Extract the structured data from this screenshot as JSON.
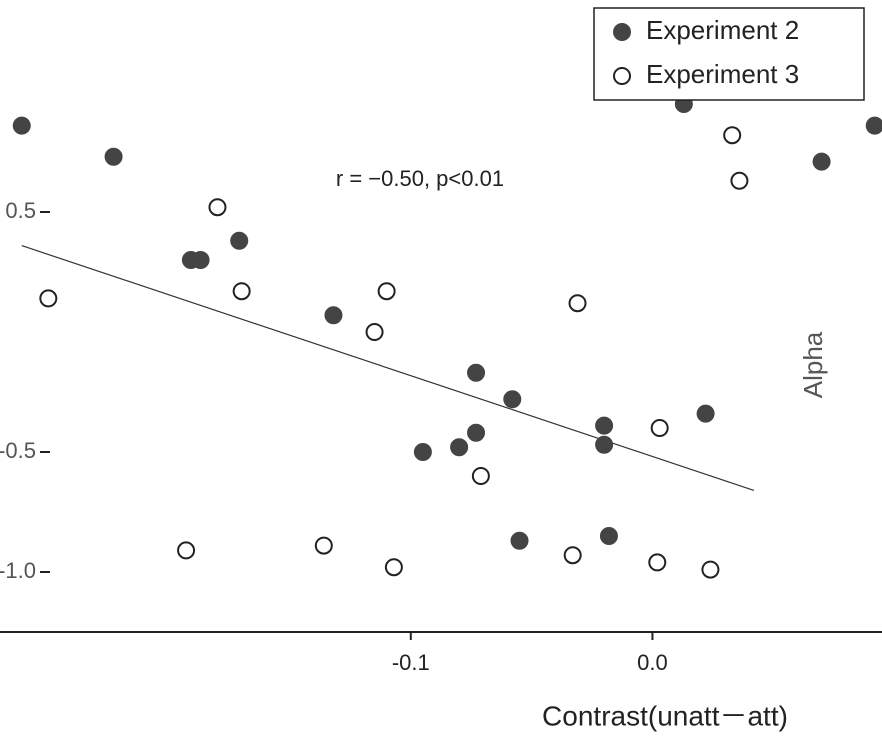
{
  "chart_data": {
    "type": "scatter",
    "annotation": "r = −0.50, p<0.01",
    "xlabel": "Contrast(unatt－att)",
    "ylabel": "Alpha",
    "xlim": [
      -0.27,
      0.095
    ],
    "ylim": [
      -1.25,
      1.3
    ],
    "xticks": [
      -0.1,
      {
        "value": 0,
        "label": "0.0"
      }
    ],
    "yticks": [
      {
        "value": -1,
        "label": "-1.0"
      },
      -0.5,
      0.5
    ],
    "legend": "top-right",
    "series": [
      {
        "name": "Experiment 2",
        "color": "#444444",
        "filled": true,
        "x": [
          -0.261,
          -0.223,
          -0.171,
          -0.191,
          -0.187,
          -0.132,
          -0.073,
          -0.058,
          -0.095,
          -0.08,
          -0.073,
          -0.02,
          -0.02,
          0.022,
          -0.055,
          -0.018,
          0.013,
          0.07,
          0.092
        ],
        "values": [
          0.86,
          0.73,
          0.38,
          0.3,
          0.3,
          0.07,
          -0.17,
          -0.28,
          -0.5,
          -0.48,
          -0.42,
          -0.39,
          -0.47,
          -0.34,
          -0.87,
          -0.85,
          0.95,
          0.71,
          0.86
        ]
      },
      {
        "name": "Experiment 3",
        "color": "#222222",
        "filled": false,
        "x": [
          -0.18,
          -0.25,
          -0.115,
          -0.031,
          0.003,
          -0.071,
          -0.193,
          -0.136,
          -0.107,
          -0.033,
          0.002,
          0.024,
          0.033,
          0.036,
          -0.17,
          -0.11
        ],
        "values": [
          0.52,
          0.14,
          0,
          0.12,
          -0.4,
          -0.6,
          -0.91,
          -0.89,
          -0.98,
          -0.93,
          -0.96,
          -0.99,
          0.82,
          0.63,
          0.17,
          0.17
        ]
      }
    ],
    "trend_line": {
      "x": [
        -0.261,
        0.042
      ],
      "values": [
        0.36,
        -0.66
      ]
    }
  }
}
